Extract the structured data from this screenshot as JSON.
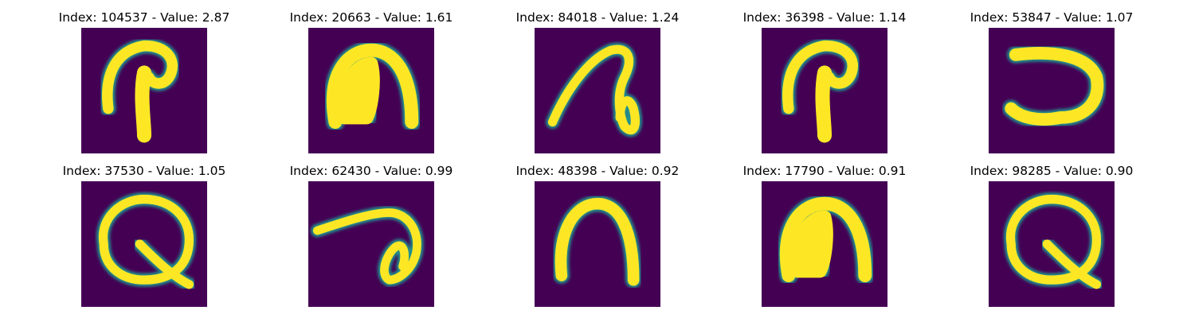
{
  "chart_data": {
    "type": "image-grid",
    "colormap": "viridis",
    "colors": {
      "background": "#440154",
      "mid": "#21918c",
      "high": "#fde725"
    },
    "panels": [
      {
        "title": "Index: 104537 - Value: 2.87",
        "index": 104537,
        "value": 2.87,
        "glyph": "p-hook"
      },
      {
        "title": "Index: 20663 - Value: 1.61",
        "index": 20663,
        "value": 1.61,
        "glyph": "thick-arch"
      },
      {
        "title": "Index: 84018 - Value: 1.24",
        "index": 84018,
        "value": 1.24,
        "glyph": "loop-slant"
      },
      {
        "title": "Index: 36398 - Value: 1.14",
        "index": 36398,
        "value": 1.14,
        "glyph": "p-hook"
      },
      {
        "title": "Index: 53847 - Value: 1.07",
        "index": 53847,
        "value": 1.07,
        "glyph": "reverse-c"
      },
      {
        "title": "Index: 37530 - Value: 1.05",
        "index": 37530,
        "value": 1.05,
        "glyph": "q-loop"
      },
      {
        "title": "Index: 62430 - Value: 0.99",
        "index": 62430,
        "value": 0.99,
        "glyph": "loop-flat"
      },
      {
        "title": "Index: 48398 - Value: 0.92",
        "index": 48398,
        "value": 0.92,
        "glyph": "arch"
      },
      {
        "title": "Index: 17790 - Value: 0.91",
        "index": 17790,
        "value": 0.91,
        "glyph": "thick-arch"
      },
      {
        "title": "Index: 98285 - Value: 0.90",
        "index": 98285,
        "value": 0.9,
        "glyph": "q-loop"
      }
    ]
  }
}
